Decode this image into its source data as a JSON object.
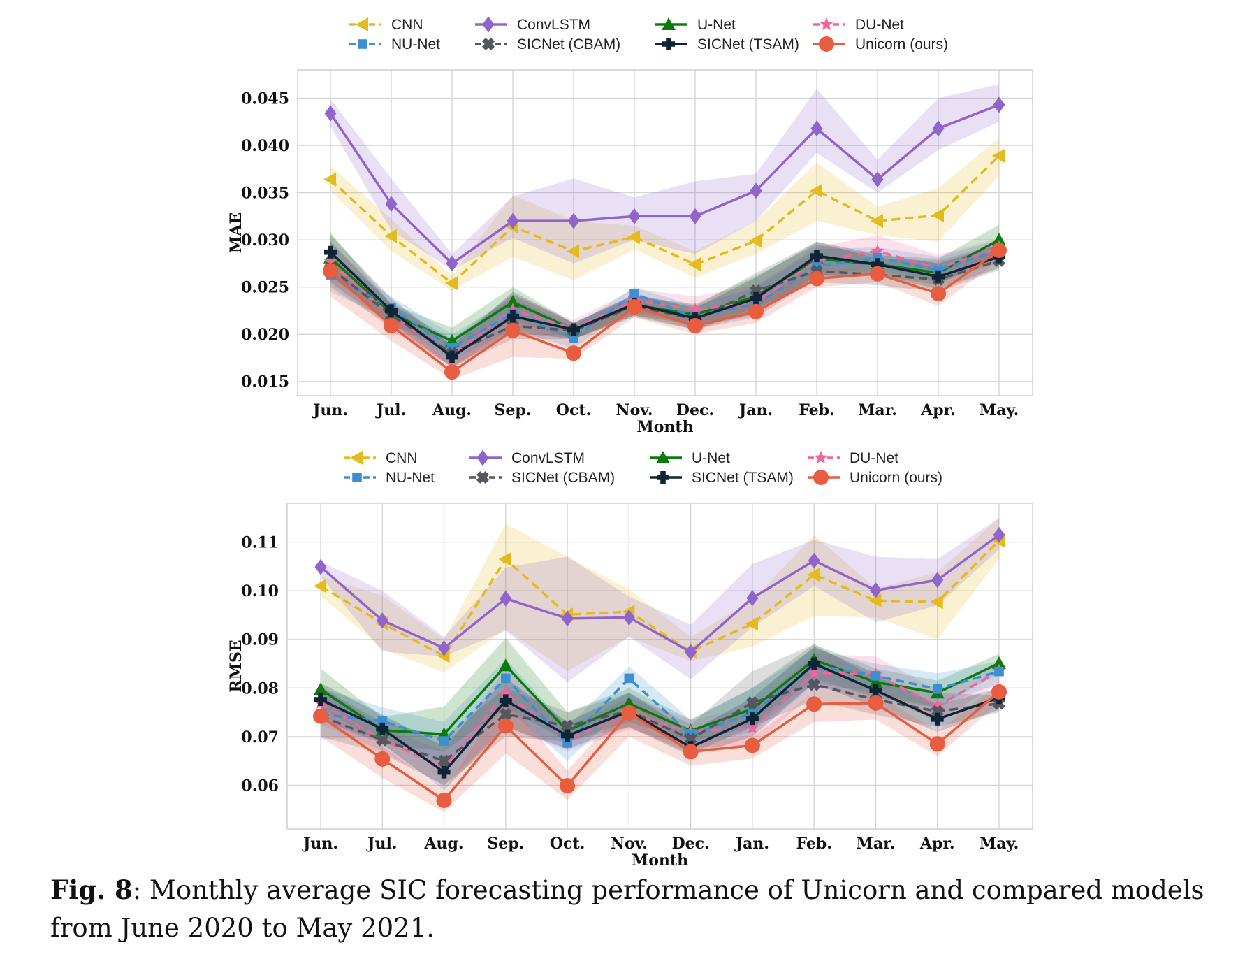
{
  "caption": {
    "label": "Fig. 8",
    "text": ": Monthly average SIC forecasting performance of Unicorn and compared models from June 2020 to May 2021."
  },
  "legend_entries": [
    {
      "name": "CNN",
      "color": "#E3BB1E",
      "marker": "triangle-left",
      "dash": true
    },
    {
      "name": "ConvLSTM",
      "color": "#9065CB",
      "marker": "diamond",
      "dash": false
    },
    {
      "name": "U-Net",
      "color": "#0C7A0C",
      "marker": "triangle-up",
      "dash": false
    },
    {
      "name": "DU-Net",
      "color": "#F0659B",
      "marker": "star",
      "dash": true
    },
    {
      "name": "NU-Net",
      "color": "#3E8FD2",
      "marker": "square",
      "dash": true
    },
    {
      "name": "SICNet (CBAM)",
      "color": "#54575F",
      "marker": "x",
      "dash": true
    },
    {
      "name": "SICNet (TSAM)",
      "color": "#0F2436",
      "marker": "plus",
      "dash": false
    },
    {
      "name": "Unicorn (ours)",
      "color": "#E85C3F",
      "marker": "circle",
      "dash": false
    }
  ],
  "chart_data": [
    {
      "type": "line",
      "title": "",
      "xlabel": "Month",
      "ylabel": "MAE",
      "categories": [
        "Jun.",
        "Jul.",
        "Aug.",
        "Sep.",
        "Oct.",
        "Nov.",
        "Dec.",
        "Jan.",
        "Feb.",
        "Mar.",
        "Apr.",
        "May."
      ],
      "ylim": [
        0.0135,
        0.048
      ],
      "yticks": [
        0.015,
        0.02,
        0.025,
        0.03,
        0.035,
        0.04,
        0.045
      ],
      "ytick_labels": [
        "0.015",
        "0.020",
        "0.025",
        "0.030",
        "0.035",
        "0.040",
        "0.045"
      ],
      "grid": true,
      "legend": "top-center",
      "shaded_band": "min-max range per model",
      "series": [
        {
          "name": "CNN",
          "values": [
            0.0364,
            0.0304,
            0.0254,
            0.0314,
            0.0288,
            0.0303,
            0.0274,
            0.0299,
            0.0352,
            0.032,
            0.0326,
            0.0389
          ],
          "lower": [
            0.0352,
            0.0288,
            0.0246,
            0.0282,
            0.0257,
            0.029,
            0.026,
            0.0285,
            0.032,
            0.0305,
            0.0298,
            0.0368
          ],
          "upper": [
            0.0378,
            0.0322,
            0.0262,
            0.0348,
            0.032,
            0.0315,
            0.0288,
            0.032,
            0.0382,
            0.0335,
            0.0355,
            0.0408
          ]
        },
        {
          "name": "ConvLSTM",
          "values": [
            0.0434,
            0.0338,
            0.0275,
            0.032,
            0.032,
            0.0325,
            0.0325,
            0.0352,
            0.0418,
            0.0364,
            0.0418,
            0.0443
          ],
          "lower": [
            0.042,
            0.031,
            0.0268,
            0.0302,
            0.0275,
            0.03,
            0.0285,
            0.032,
            0.0392,
            0.035,
            0.0395,
            0.0425
          ],
          "upper": [
            0.0449,
            0.0365,
            0.0285,
            0.0346,
            0.0365,
            0.0345,
            0.0362,
            0.037,
            0.046,
            0.0385,
            0.045,
            0.0465
          ]
        },
        {
          "name": "U-Net",
          "values": [
            0.0281,
            0.0222,
            0.0193,
            0.0234,
            0.0205,
            0.0231,
            0.0221,
            0.024,
            0.028,
            0.0274,
            0.0265,
            0.03
          ],
          "lower": [
            0.0255,
            0.021,
            0.0182,
            0.0215,
            0.0195,
            0.022,
            0.021,
            0.0222,
            0.0262,
            0.0262,
            0.0252,
            0.0288
          ],
          "upper": [
            0.0308,
            0.0232,
            0.0207,
            0.025,
            0.0212,
            0.024,
            0.0232,
            0.0262,
            0.0295,
            0.0284,
            0.028,
            0.0316
          ]
        },
        {
          "name": "DU-Net",
          "values": [
            0.0277,
            0.0219,
            0.0178,
            0.0226,
            0.0206,
            0.0236,
            0.0226,
            0.0234,
            0.0278,
            0.0288,
            0.027,
            0.0292
          ],
          "lower": [
            0.0255,
            0.0205,
            0.0165,
            0.0205,
            0.0195,
            0.0222,
            0.0212,
            0.0218,
            0.0262,
            0.0272,
            0.0255,
            0.028
          ],
          "upper": [
            0.0298,
            0.0232,
            0.0192,
            0.0242,
            0.0215,
            0.0248,
            0.024,
            0.0252,
            0.0292,
            0.0305,
            0.0284,
            0.0302
          ]
        },
        {
          "name": "NU-Net",
          "values": [
            0.0263,
            0.0228,
            0.0186,
            0.0222,
            0.0196,
            0.0243,
            0.0218,
            0.0232,
            0.0272,
            0.0281,
            0.0268,
            0.0289
          ],
          "lower": [
            0.0245,
            0.0215,
            0.0172,
            0.0205,
            0.0185,
            0.023,
            0.0205,
            0.0218,
            0.0258,
            0.0268,
            0.0255,
            0.0276
          ],
          "upper": [
            0.0282,
            0.024,
            0.02,
            0.0238,
            0.0208,
            0.025,
            0.023,
            0.025,
            0.029,
            0.0292,
            0.0282,
            0.03
          ]
        },
        {
          "name": "SICNet (CBAM)",
          "values": [
            0.027,
            0.022,
            0.018,
            0.0209,
            0.0204,
            0.023,
            0.0216,
            0.0246,
            0.0267,
            0.0263,
            0.0258,
            0.0278
          ],
          "lower": [
            0.025,
            0.0208,
            0.0165,
            0.0195,
            0.0195,
            0.0218,
            0.0205,
            0.0228,
            0.0255,
            0.0252,
            0.0245,
            0.0268
          ],
          "upper": [
            0.0298,
            0.0232,
            0.0195,
            0.0242,
            0.0212,
            0.0242,
            0.023,
            0.0265,
            0.0298,
            0.028,
            0.0278,
            0.0296
          ]
        },
        {
          "name": "SICNet (TSAM)",
          "values": [
            0.0287,
            0.0225,
            0.0176,
            0.0219,
            0.0205,
            0.0232,
            0.0217,
            0.0238,
            0.0283,
            0.0274,
            0.0261,
            0.0282
          ],
          "lower": [
            0.0262,
            0.0212,
            0.0165,
            0.0202,
            0.0195,
            0.022,
            0.0205,
            0.0222,
            0.0262,
            0.0262,
            0.0248,
            0.027
          ],
          "upper": [
            0.0305,
            0.0238,
            0.0188,
            0.0245,
            0.0212,
            0.0242,
            0.0228,
            0.026,
            0.0298,
            0.0285,
            0.0275,
            0.0295
          ]
        },
        {
          "name": "Unicorn (ours)",
          "values": [
            0.0267,
            0.0209,
            0.016,
            0.0204,
            0.018,
            0.0229,
            0.0209,
            0.0224,
            0.0259,
            0.0264,
            0.0243,
            0.0289
          ],
          "lower": [
            0.024,
            0.0193,
            0.0152,
            0.0176,
            0.0174,
            0.0218,
            0.02,
            0.0212,
            0.025,
            0.0255,
            0.023,
            0.0278
          ],
          "upper": [
            0.0282,
            0.022,
            0.017,
            0.0218,
            0.0196,
            0.0237,
            0.0218,
            0.0235,
            0.0268,
            0.027,
            0.0255,
            0.0296
          ]
        }
      ]
    },
    {
      "type": "line",
      "title": "",
      "xlabel": "Month",
      "ylabel": "RMSE",
      "categories": [
        "Jun.",
        "Jul.",
        "Aug.",
        "Sep.",
        "Oct.",
        "Nov.",
        "Dec.",
        "Jan.",
        "Feb.",
        "Mar.",
        "Apr.",
        "May."
      ],
      "ylim": [
        0.051,
        0.118
      ],
      "yticks": [
        0.06,
        0.07,
        0.08,
        0.09,
        0.1,
        0.11
      ],
      "ytick_labels": [
        "0.06",
        "0.07",
        "0.08",
        "0.09",
        "0.10",
        "0.11"
      ],
      "grid": true,
      "legend": "top-center",
      "shaded_band": "min-max range per model",
      "series": [
        {
          "name": "CNN",
          "values": [
            0.101,
            0.0933,
            0.0866,
            0.1065,
            0.0951,
            0.0957,
            0.0875,
            0.0932,
            0.1033,
            0.098,
            0.0977,
            0.1103
          ],
          "lower": [
            0.099,
            0.088,
            0.0832,
            0.092,
            0.0835,
            0.0905,
            0.0855,
            0.0885,
            0.0948,
            0.0945,
            0.09,
            0.1065
          ],
          "upper": [
            0.103,
            0.099,
            0.09,
            0.1138,
            0.107,
            0.1003,
            0.0905,
            0.098,
            0.1115,
            0.1005,
            0.1038,
            0.115
          ]
        },
        {
          "name": "ConvLSTM",
          "values": [
            0.1049,
            0.0939,
            0.0882,
            0.0984,
            0.0943,
            0.0945,
            0.0874,
            0.0985,
            0.1062,
            0.1001,
            0.1022,
            0.1115
          ],
          "lower": [
            0.103,
            0.0875,
            0.0865,
            0.0918,
            0.0812,
            0.0905,
            0.0818,
            0.0925,
            0.101,
            0.0935,
            0.097,
            0.1085
          ],
          "upper": [
            0.106,
            0.1,
            0.0905,
            0.1048,
            0.107,
            0.0988,
            0.093,
            0.1055,
            0.1105,
            0.107,
            0.1065,
            0.115
          ]
        },
        {
          "name": "U-Net",
          "values": [
            0.0797,
            0.0713,
            0.0705,
            0.0846,
            0.0712,
            0.0768,
            0.0712,
            0.0757,
            0.0858,
            0.0812,
            0.079,
            0.0851
          ],
          "lower": [
            0.076,
            0.0685,
            0.067,
            0.076,
            0.069,
            0.073,
            0.069,
            0.072,
            0.082,
            0.078,
            0.076,
            0.083
          ],
          "upper": [
            0.084,
            0.074,
            0.0762,
            0.0903,
            0.075,
            0.08,
            0.0735,
            0.08,
            0.089,
            0.084,
            0.0815,
            0.087
          ]
        },
        {
          "name": "DU-Net",
          "values": [
            0.0769,
            0.0693,
            0.0637,
            0.0789,
            0.0693,
            0.0747,
            0.071,
            0.0718,
            0.0831,
            0.0828,
            0.0763,
            0.0835
          ],
          "lower": [
            0.0725,
            0.067,
            0.06,
            0.072,
            0.067,
            0.0715,
            0.068,
            0.068,
            0.079,
            0.079,
            0.073,
            0.081
          ],
          "upper": [
            0.0805,
            0.072,
            0.067,
            0.084,
            0.072,
            0.078,
            0.0735,
            0.076,
            0.087,
            0.0865,
            0.0795,
            0.085
          ]
        },
        {
          "name": "NU-Net",
          "values": [
            0.0746,
            0.0732,
            0.0691,
            0.082,
            0.0687,
            0.082,
            0.0704,
            0.0748,
            0.0847,
            0.0825,
            0.0798,
            0.0834
          ],
          "lower": [
            0.0695,
            0.07,
            0.064,
            0.076,
            0.065,
            0.077,
            0.068,
            0.071,
            0.081,
            0.079,
            0.076,
            0.081
          ],
          "upper": [
            0.08,
            0.076,
            0.073,
            0.086,
            0.072,
            0.0845,
            0.0735,
            0.08,
            0.088,
            0.085,
            0.083,
            0.0855
          ]
        },
        {
          "name": "SICNet (CBAM)",
          "values": [
            0.0742,
            0.0693,
            0.065,
            0.0746,
            0.0722,
            0.0753,
            0.0695,
            0.077,
            0.0807,
            0.0776,
            0.0752,
            0.0768
          ],
          "lower": [
            0.07,
            0.0665,
            0.06,
            0.07,
            0.069,
            0.072,
            0.0665,
            0.072,
            0.0775,
            0.0745,
            0.072,
            0.075
          ],
          "upper": [
            0.08,
            0.073,
            0.07,
            0.08,
            0.075,
            0.079,
            0.0725,
            0.0835,
            0.089,
            0.082,
            0.079,
            0.0785
          ]
        },
        {
          "name": "SICNet (TSAM)",
          "values": [
            0.0776,
            0.0716,
            0.0627,
            0.0774,
            0.0702,
            0.0752,
            0.0678,
            0.0737,
            0.085,
            0.0795,
            0.0736,
            0.078
          ],
          "lower": [
            0.0735,
            0.0685,
            0.059,
            0.072,
            0.0675,
            0.072,
            0.066,
            0.07,
            0.081,
            0.076,
            0.071,
            0.0755
          ],
          "upper": [
            0.081,
            0.0745,
            0.068,
            0.082,
            0.073,
            0.079,
            0.071,
            0.078,
            0.0885,
            0.083,
            0.0765,
            0.08
          ]
        },
        {
          "name": "Unicorn (ours)",
          "values": [
            0.0742,
            0.0654,
            0.0569,
            0.0722,
            0.0599,
            0.0749,
            0.0669,
            0.0682,
            0.0767,
            0.0769,
            0.0685,
            0.0792
          ],
          "lower": [
            0.07,
            0.0615,
            0.0545,
            0.0665,
            0.057,
            0.07,
            0.064,
            0.0655,
            0.073,
            0.0735,
            0.066,
            0.077
          ],
          "upper": [
            0.076,
            0.068,
            0.059,
            0.078,
            0.063,
            0.077,
            0.069,
            0.07,
            0.079,
            0.079,
            0.071,
            0.081
          ]
        }
      ]
    }
  ]
}
